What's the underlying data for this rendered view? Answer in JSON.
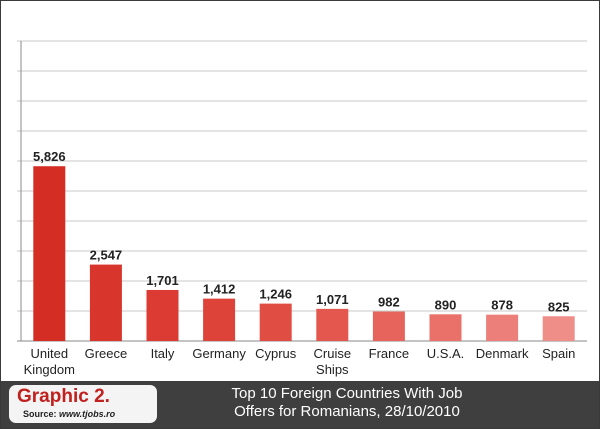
{
  "chart_data": {
    "type": "bar",
    "categories": [
      "United\nKingdom",
      "Greece",
      "Italy",
      "Germany",
      "Cyprus",
      "Cruise\nShips",
      "France",
      "U.S.A.",
      "Denmark",
      "Spain"
    ],
    "values": [
      5826,
      2547,
      1701,
      1412,
      1246,
      1071,
      982,
      890,
      878,
      825
    ],
    "value_labels": [
      "5,826",
      "2,547",
      "1,701",
      "1,412",
      "1,246",
      "1,071",
      "982",
      "890",
      "878",
      "825"
    ],
    "title": "Top 10 Foreign Countries With Job\nOffers for Romanians, 28/10/2010",
    "xlabel": "",
    "ylabel": "",
    "ylim": [
      0,
      10000
    ],
    "grid": true,
    "legend": "none",
    "bar_colors": [
      "#d42d23",
      "#d8352c",
      "#db3b32",
      "#dd4339",
      "#e04d43",
      "#e3574e",
      "#e6645c",
      "#e9716a",
      "#ec7f79",
      "#ef8e89"
    ]
  },
  "footer": {
    "badge_title": "Graphic 2.",
    "source_prefix": "Source: ",
    "source_site": "www.tjobs.ro"
  },
  "colors": {
    "footer_bg": "#3f3f3f",
    "badge_text": "#c0201e",
    "grid": "#c8c8c8"
  }
}
